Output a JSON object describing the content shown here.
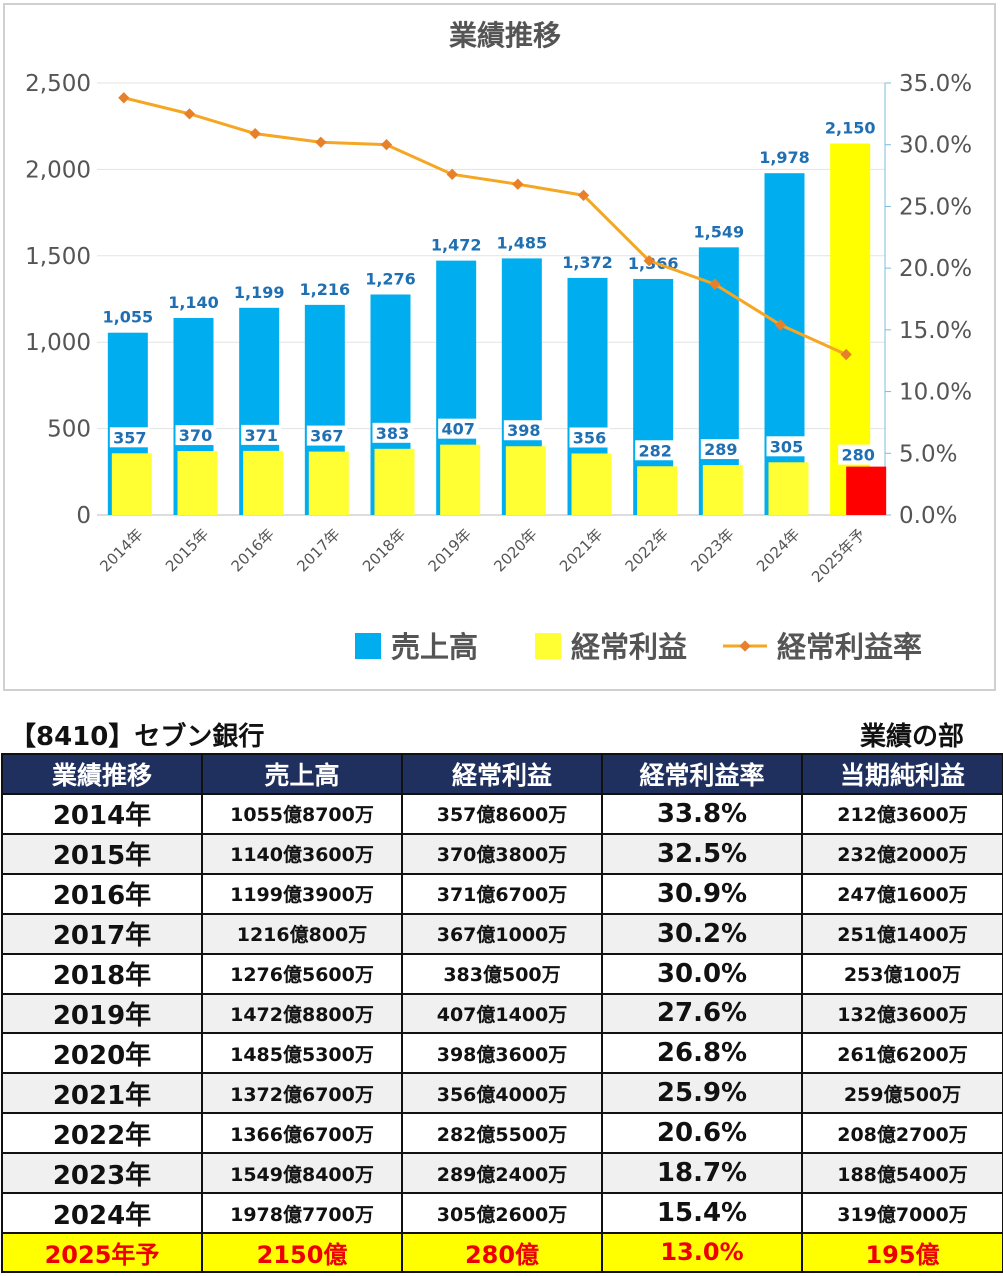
{
  "chart_data": {
    "type": "bar",
    "title": "業績推移",
    "categories": [
      "2014年",
      "2015年",
      "2016年",
      "2017年",
      "2018年",
      "2019年",
      "2020年",
      "2021年",
      "2022年",
      "2023年",
      "2024年",
      "2025年予"
    ],
    "series": [
      {
        "name": "売上高",
        "type": "bar",
        "axis": "left",
        "color": "#00aeef",
        "values": [
          1055,
          1140,
          1199,
          1216,
          1276,
          1472,
          1485,
          1372,
          1366,
          1549,
          1978,
          2150
        ],
        "labels": [
          "1,055",
          "1,140",
          "1,199",
          "1,216",
          "1,276",
          "1,472",
          "1,485",
          "1,372",
          "1,366",
          "1,549",
          "1,978",
          "2,150"
        ]
      },
      {
        "name": "経常利益",
        "type": "bar",
        "axis": "left",
        "color": "#ffff33",
        "values": [
          357,
          370,
          371,
          367,
          383,
          407,
          398,
          356,
          282,
          289,
          305,
          280
        ],
        "labels": [
          "357",
          "370",
          "371",
          "367",
          "383",
          "407",
          "398",
          "356",
          "282",
          "289",
          "305",
          "280"
        ]
      },
      {
        "name": "経常利益率",
        "type": "line",
        "axis": "right",
        "color": "#f5a623",
        "values": [
          33.8,
          32.5,
          30.9,
          30.2,
          30.0,
          27.6,
          26.8,
          25.9,
          20.6,
          18.7,
          15.4,
          13.0
        ]
      }
    ],
    "forecast_colors": {
      "sales": "#ffff00",
      "profit": "#ff0000"
    },
    "y_left": {
      "min": 0,
      "max": 2500,
      "ticks": [
        "0",
        "500",
        "1,000",
        "1,500",
        "2,000",
        "2,500"
      ]
    },
    "y_right": {
      "min": 0,
      "max": 35,
      "ticks": [
        "0.0%",
        "5.0%",
        "10.0%",
        "15.0%",
        "20.0%",
        "25.0%",
        "30.0%",
        "35.0%"
      ]
    },
    "legend": "bottom",
    "grid": true
  },
  "header": {
    "company": "【8410】セブン銀行",
    "section": "業績の部"
  },
  "table": {
    "columns": [
      "業績推移",
      "売上高",
      "経常利益",
      "経常利益率",
      "当期純利益"
    ],
    "rows": [
      [
        "2014年",
        "1055億8700万",
        "357億8600万",
        "33.8%",
        "212億3600万"
      ],
      [
        "2015年",
        "1140億3600万",
        "370億3800万",
        "32.5%",
        "232億2000万"
      ],
      [
        "2016年",
        "1199億3900万",
        "371億6700万",
        "30.9%",
        "247億1600万"
      ],
      [
        "2017年",
        "1216億800万",
        "367億1000万",
        "30.2%",
        "251億1400万"
      ],
      [
        "2018年",
        "1276億5600万",
        "383億500万",
        "30.0%",
        "253億100万"
      ],
      [
        "2019年",
        "1472億8800万",
        "407億1400万",
        "27.6%",
        "132億3600万"
      ],
      [
        "2020年",
        "1485億5300万",
        "398億3600万",
        "26.8%",
        "261億6200万"
      ],
      [
        "2021年",
        "1372億6700万",
        "356億4000万",
        "25.9%",
        "259億500万"
      ],
      [
        "2022年",
        "1366億6700万",
        "282億5500万",
        "20.6%",
        "208億2700万"
      ],
      [
        "2023年",
        "1549億8400万",
        "289億2400万",
        "18.7%",
        "188億5400万"
      ],
      [
        "2024年",
        "1978億7700万",
        "305億2600万",
        "15.4%",
        "319億7000万"
      ],
      [
        "2025年予",
        "2150億",
        "280億",
        "13.0%",
        "195億"
      ]
    ]
  }
}
